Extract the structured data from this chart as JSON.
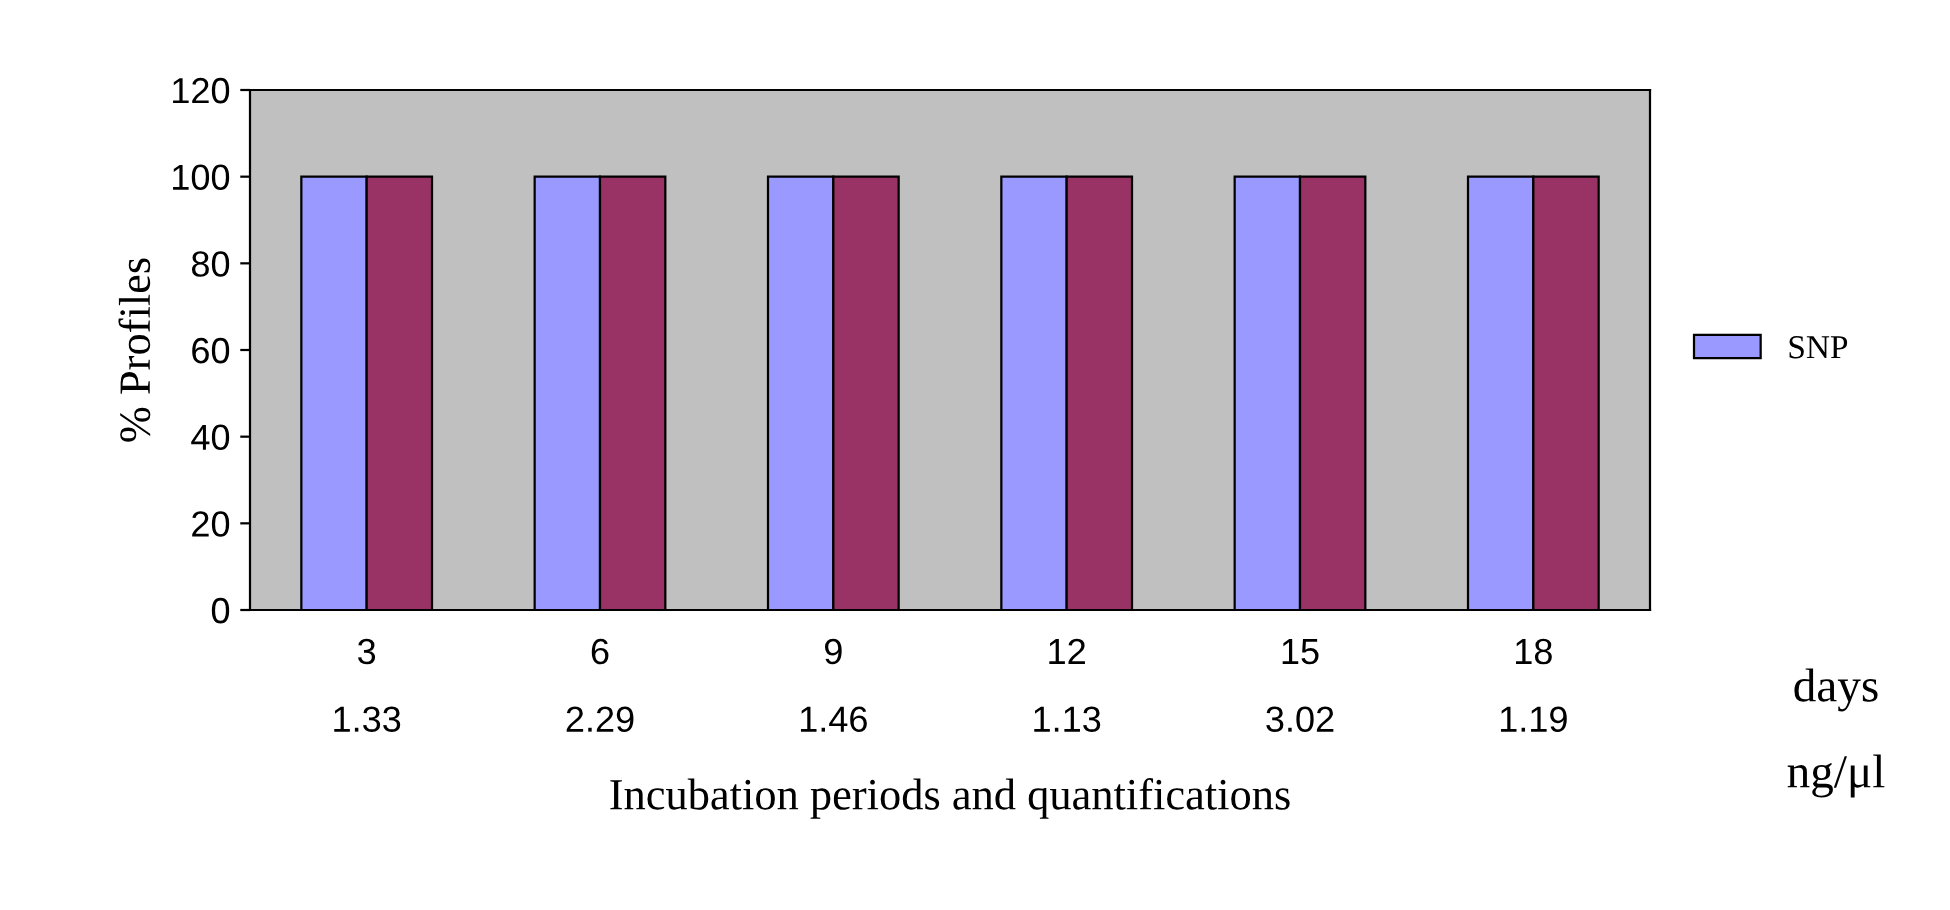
{
  "chart_data": {
    "type": "bar",
    "ylabel": "% Profiles",
    "xlabel": "Incubation periods and quantifications",
    "categories": [
      "3\n1.33",
      "6\n2.29",
      "9\n1.46",
      "12\n1.13",
      "15\n3.02",
      "18\n1.19"
    ],
    "series": [
      {
        "name": "SNP",
        "color": "#9999ff",
        "values": [
          100,
          100,
          100,
          100,
          100,
          100
        ]
      },
      {
        "color": "#993366",
        "values": [
          100,
          100,
          100,
          100,
          100,
          100
        ]
      }
    ],
    "ylim": [
      0,
      120
    ],
    "yticks": [
      0,
      20,
      40,
      60,
      80,
      100,
      120
    ],
    "grid": false,
    "legend": "right",
    "annotations": [
      "days",
      "ng/μl"
    ]
  }
}
